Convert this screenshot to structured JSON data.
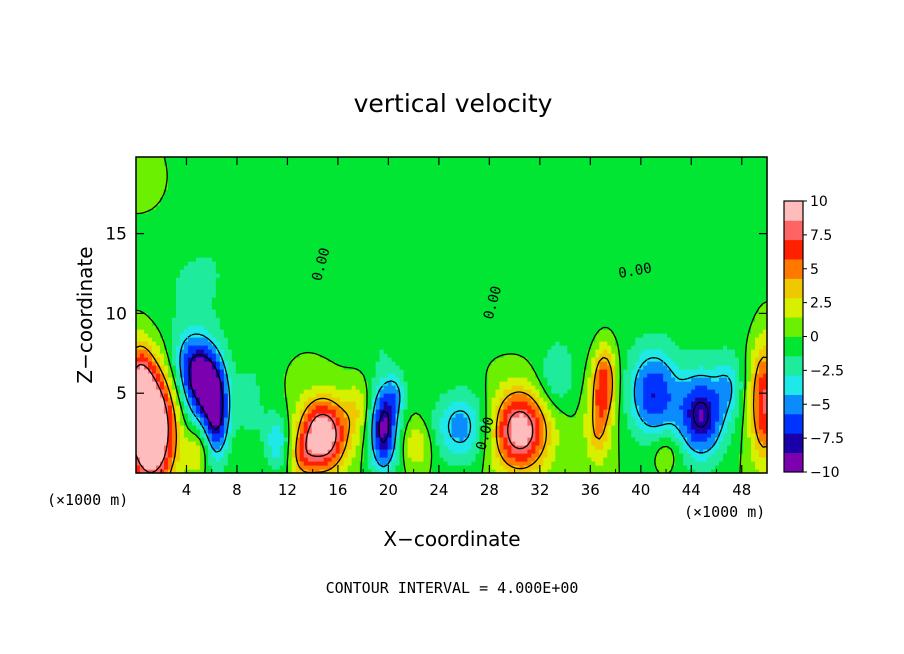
{
  "chart_data": {
    "type": "heatmap",
    "title": "vertical velocity",
    "xlabel": "X−coordinate",
    "ylabel": "Z−coordinate",
    "x_unit_label": "(×1000 m)",
    "xlim": [
      0,
      50
    ],
    "ylim": [
      0,
      19.8
    ],
    "x_ticks": [
      "4",
      "8",
      "12",
      "16",
      "20",
      "24",
      "28",
      "32",
      "36",
      "40",
      "44",
      "48"
    ],
    "y_ticks": [
      "5",
      "10",
      "15"
    ],
    "contour_interval_text": "CONTOUR INTERVAL = 4.000E+00",
    "contour_labels": [
      {
        "text": "0.00",
        "x": 15,
        "y": 13
      },
      {
        "text": "0.00",
        "x": 28.6,
        "y": 10.6
      },
      {
        "text": "0.00",
        "x": 39.6,
        "y": 12.4
      },
      {
        "text": "0.00",
        "x": 28,
        "y": 2.4
      }
    ],
    "colorbar": {
      "labels": [
        "10",
        "7.5",
        "5",
        "2.5",
        "0",
        "−2.5",
        "−5",
        "−7.5",
        "−10"
      ],
      "min": -10,
      "max": 10,
      "colors": [
        "#7a00b0",
        "#1a00a8",
        "#0033ff",
        "#0a8cff",
        "#1ee8e8",
        "#1eeb9c",
        "#00e632",
        "#6af000",
        "#d6f000",
        "#f0c800",
        "#ff7800",
        "#ff2000",
        "#ff6464",
        "#ffbcbc"
      ]
    },
    "features": [
      {
        "x": 1.2,
        "z": 2.8,
        "w": 14.0,
        "sx": 1.3,
        "sz": 2.6
      },
      {
        "x": 0.2,
        "z": 5.5,
        "w": 6.0,
        "sx": 0.8,
        "sz": 2.0
      },
      {
        "x": 5.2,
        "z": 5.6,
        "w": -9.0,
        "sx": 1.1,
        "sz": 1.7
      },
      {
        "x": 6.4,
        "z": 3.6,
        "w": -7.5,
        "sx": 0.7,
        "sz": 2.0
      },
      {
        "x": 4.2,
        "z": 7.2,
        "w": -3.0,
        "sx": 1.2,
        "sz": 1.4
      },
      {
        "x": 4.8,
        "z": 1.3,
        "w": 3.0,
        "sx": 0.6,
        "sz": 0.9
      },
      {
        "x": 9.0,
        "z": 4.5,
        "w": -2.0,
        "sx": 1.0,
        "sz": 2.0
      },
      {
        "x": 11.2,
        "z": 2.0,
        "w": -4.0,
        "sx": 0.7,
        "sz": 1.3
      },
      {
        "x": 14.8,
        "z": 2.4,
        "w": 11.0,
        "sx": 1.3,
        "sz": 1.6
      },
      {
        "x": 13.2,
        "z": 1.0,
        "w": 3.0,
        "sx": 0.7,
        "sz": 1.0
      },
      {
        "x": 19.6,
        "z": 2.8,
        "w": -9.0,
        "sx": 0.8,
        "sz": 1.9
      },
      {
        "x": 20.6,
        "z": 5.0,
        "w": -3.0,
        "sx": 0.6,
        "sz": 1.0
      },
      {
        "x": 17.6,
        "z": 4.0,
        "w": 2.5,
        "sx": 0.8,
        "sz": 1.3
      },
      {
        "x": 22.3,
        "z": 1.8,
        "w": 3.0,
        "sx": 0.8,
        "sz": 1.0
      },
      {
        "x": 25.8,
        "z": 2.9,
        "w": -5.0,
        "sx": 1.6,
        "sz": 1.6
      },
      {
        "x": 30.4,
        "z": 2.7,
        "w": 10.0,
        "sx": 1.6,
        "sz": 1.8
      },
      {
        "x": 33.2,
        "z": 5.8,
        "w": -2.5,
        "sx": 1.0,
        "sz": 1.4
      },
      {
        "x": 37.1,
        "z": 5.8,
        "w": 7.0,
        "sx": 0.7,
        "sz": 1.6
      },
      {
        "x": 36.6,
        "z": 2.8,
        "w": 4.0,
        "sx": 0.7,
        "sz": 1.6
      },
      {
        "x": 41.0,
        "z": 5.0,
        "w": -7.0,
        "sx": 1.4,
        "sz": 2.0
      },
      {
        "x": 44.8,
        "z": 3.6,
        "w": -8.5,
        "sx": 1.3,
        "sz": 1.9
      },
      {
        "x": 47.0,
        "z": 5.5,
        "w": -3.0,
        "sx": 0.8,
        "sz": 1.4
      },
      {
        "x": 49.8,
        "z": 4.5,
        "w": 7.5,
        "sx": 0.8,
        "sz": 2.6
      },
      {
        "x": 42.0,
        "z": 1.4,
        "w": 2.0,
        "sx": 0.8,
        "sz": 0.8
      },
      {
        "x": 4.0,
        "z": 11.5,
        "w": -1.4,
        "sx": 3.0,
        "sz": 3.0
      },
      {
        "x": 8.0,
        "z": 14.5,
        "w": -0.7,
        "sx": 3.0,
        "sz": 3.0
      },
      {
        "x": 25.0,
        "z": 12.0,
        "w": -0.6,
        "sx": 4.0,
        "sz": 3.0
      },
      {
        "x": 35.0,
        "z": 9.0,
        "w": -1.0,
        "sx": 3.0,
        "sz": 2.5
      },
      {
        "x": 46.0,
        "z": 11.0,
        "w": -1.0,
        "sx": 3.0,
        "sz": 3.0
      },
      {
        "x": 19.0,
        "z": 8.5,
        "w": -1.2,
        "sx": 2.0,
        "sz": 1.5
      },
      {
        "x": 2.0,
        "z": 16.0,
        "w": 0.3,
        "sx": 2.0,
        "sz": 2.0
      }
    ]
  }
}
